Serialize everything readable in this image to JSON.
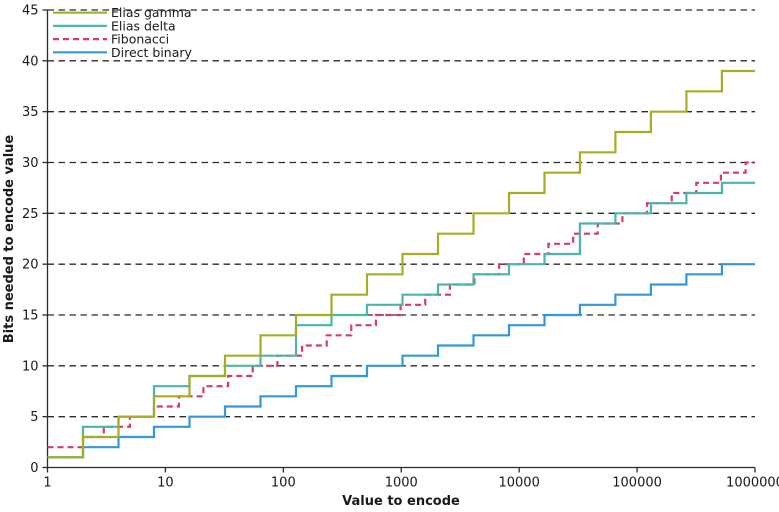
{
  "chart_data": {
    "type": "line",
    "subtype": "step",
    "title": "",
    "xlabel": "Value to encode",
    "ylabel": "Bits needed to encode value",
    "xscale": "log",
    "yscale": "linear",
    "xlim": [
      1,
      1000000
    ],
    "ylim": [
      0,
      45
    ],
    "x_ticks": [
      1,
      10,
      100,
      1000,
      10000,
      100000,
      1000000
    ],
    "x_tick_labels": [
      "1",
      "10",
      "100",
      "1000",
      "10000",
      "100000",
      "1000000"
    ],
    "y_ticks": [
      0,
      5,
      10,
      15,
      20,
      25,
      30,
      35,
      40,
      45
    ],
    "y_tick_labels": [
      "0",
      "5",
      "10",
      "15",
      "20",
      "25",
      "30",
      "35",
      "40",
      "45"
    ],
    "grid": "horizontal-dashed-black",
    "legend_position": "upper-left",
    "steps_note": "each entry is [value, bits]; the bits level holds until the next entry's value; last level extends to xlim max",
    "series": [
      {
        "name": "Elias gamma",
        "color": "#a5ad27",
        "style": "solid",
        "steps": [
          [
            1,
            1
          ],
          [
            2,
            3
          ],
          [
            4,
            5
          ],
          [
            8,
            7
          ],
          [
            16,
            9
          ],
          [
            32,
            11
          ],
          [
            64,
            13
          ],
          [
            128,
            15
          ],
          [
            256,
            17
          ],
          [
            512,
            19
          ],
          [
            1024,
            21
          ],
          [
            2048,
            23
          ],
          [
            4096,
            25
          ],
          [
            8192,
            27
          ],
          [
            16384,
            29
          ],
          [
            32768,
            31
          ],
          [
            65536,
            33
          ],
          [
            131072,
            35
          ],
          [
            262144,
            37
          ],
          [
            524288,
            39
          ]
        ]
      },
      {
        "name": "Elias delta",
        "color": "#4db3ad",
        "style": "solid",
        "steps": [
          [
            1,
            1
          ],
          [
            2,
            4
          ],
          [
            4,
            5
          ],
          [
            8,
            8
          ],
          [
            16,
            9
          ],
          [
            32,
            10
          ],
          [
            64,
            11
          ],
          [
            128,
            14
          ],
          [
            256,
            15
          ],
          [
            512,
            16
          ],
          [
            1024,
            17
          ],
          [
            2048,
            18
          ],
          [
            4096,
            19
          ],
          [
            8192,
            20
          ],
          [
            16384,
            21
          ],
          [
            32768,
            24
          ],
          [
            65536,
            25
          ],
          [
            131072,
            26
          ],
          [
            262144,
            27
          ],
          [
            524288,
            28
          ]
        ]
      },
      {
        "name": "Fibonacci",
        "color": "#d53a6f",
        "style": "dashed",
        "steps": [
          [
            1,
            2
          ],
          [
            2,
            3
          ],
          [
            3,
            4
          ],
          [
            5,
            5
          ],
          [
            8,
            6
          ],
          [
            13,
            7
          ],
          [
            21,
            8
          ],
          [
            34,
            9
          ],
          [
            55,
            10
          ],
          [
            89,
            11
          ],
          [
            144,
            12
          ],
          [
            233,
            13
          ],
          [
            377,
            14
          ],
          [
            610,
            15
          ],
          [
            987,
            16
          ],
          [
            1597,
            17
          ],
          [
            2584,
            18
          ],
          [
            4181,
            19
          ],
          [
            6765,
            20
          ],
          [
            10946,
            21
          ],
          [
            17711,
            22
          ],
          [
            28657,
            23
          ],
          [
            46368,
            24
          ],
          [
            75025,
            25
          ],
          [
            121393,
            26
          ],
          [
            196418,
            27
          ],
          [
            317811,
            28
          ],
          [
            514229,
            29
          ],
          [
            832040,
            30
          ]
        ]
      },
      {
        "name": "Direct binary",
        "color": "#3498d8",
        "style": "solid",
        "steps": [
          [
            1,
            1
          ],
          [
            2,
            2
          ],
          [
            4,
            3
          ],
          [
            8,
            4
          ],
          [
            16,
            5
          ],
          [
            32,
            6
          ],
          [
            64,
            7
          ],
          [
            128,
            8
          ],
          [
            256,
            9
          ],
          [
            512,
            10
          ],
          [
            1024,
            11
          ],
          [
            2048,
            12
          ],
          [
            4096,
            13
          ],
          [
            8192,
            14
          ],
          [
            16384,
            15
          ],
          [
            32768,
            16
          ],
          [
            65536,
            17
          ],
          [
            131072,
            18
          ],
          [
            262144,
            19
          ],
          [
            524288,
            20
          ]
        ]
      }
    ],
    "colors": {
      "grid": "#2b2b2b",
      "spine": "#2b2b2b",
      "text": "#1a1a1a",
      "background": "#ffffff"
    }
  }
}
